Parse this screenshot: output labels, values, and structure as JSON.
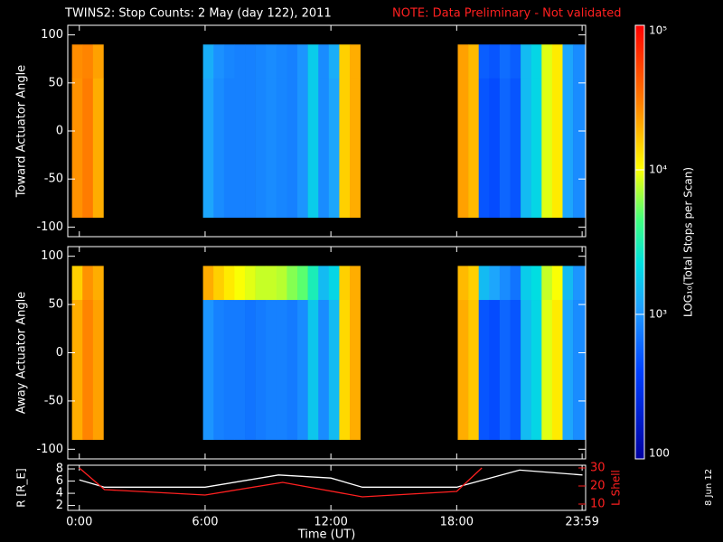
{
  "title": "TWINS2: Stop Counts:  2 May (day 122), 2011",
  "note": "NOTE: Data Preliminary - Not validated",
  "date": "8 Jun 12",
  "colorbar": {
    "label": "LOG₁₀(Total Stops per Scan)",
    "zlim": [
      100,
      100000
    ],
    "ticks": [
      100,
      {
        "value": 1000,
        "label": "10³"
      },
      {
        "value": 10000,
        "label": "10⁴"
      },
      {
        "value": 100000,
        "label": "10⁵"
      }
    ]
  },
  "chart_data": [
    {
      "type": "heatmap",
      "ylabel": "Toward Actuator Angle",
      "xlim": [
        -0.55,
        24.15
      ],
      "ylim": [
        -110,
        110
      ],
      "yticks": [
        100,
        50,
        0,
        -50,
        -100
      ],
      "y_bins": [
        -90,
        55,
        90
      ],
      "blocks": [
        {
          "x_bins": [
            -0.35,
            0.15,
            0.65,
            1.15
          ],
          "z": [
            [
              25000,
              30000,
              20000
            ],
            [
              26000,
              28000,
              22000
            ]
          ]
        },
        {
          "x_bins": [
            5.9,
            6.4,
            6.9,
            7.4,
            7.9,
            8.4,
            8.9,
            9.4,
            9.9,
            10.4,
            10.9,
            11.4,
            11.9,
            12.4,
            12.9,
            13.4
          ],
          "z": [
            [
              1200,
              900,
              800,
              800,
              800,
              850,
              900,
              850,
              800,
              1000,
              1800,
              900,
              1200,
              15000,
              20000
            ],
            [
              1300,
              950,
              850,
              800,
              800,
              850,
              900,
              850,
              800,
              1000,
              1800,
              900,
              1300,
              15000,
              20000
            ]
          ]
        },
        {
          "x_bins": [
            18.05,
            18.55,
            19.05,
            19.55,
            20.05,
            20.55,
            21.05,
            21.55,
            22.05,
            22.55,
            23.05,
            23.55,
            24.15
          ],
          "z": [
            [
              22000,
              18000,
              500,
              450,
              600,
              500,
              1500,
              2000,
              9000,
              12000,
              1200,
              900
            ],
            [
              22000,
              18000,
              550,
              500,
              650,
              550,
              1500,
              2000,
              9000,
              12000,
              1200,
              900
            ]
          ]
        }
      ]
    },
    {
      "type": "heatmap",
      "ylabel": "Away Actuator Angle",
      "xlim": [
        -0.55,
        24.15
      ],
      "ylim": [
        -110,
        110
      ],
      "yticks": [
        100,
        50,
        0,
        -50,
        -100
      ],
      "y_bins": [
        -90,
        55,
        90
      ],
      "blocks": [
        {
          "x_bins": [
            -0.35,
            0.15,
            0.65,
            1.15
          ],
          "z": [
            [
              20000,
              28000,
              22000
            ],
            [
              15000,
              25000,
              20000
            ]
          ]
        },
        {
          "x_bins": [
            5.9,
            6.4,
            6.9,
            7.4,
            7.9,
            8.4,
            8.9,
            9.4,
            9.9,
            10.4,
            10.9,
            11.4,
            11.9,
            12.4,
            12.9,
            13.4
          ],
          "z": [
            [
              1000,
              800,
              750,
              750,
              700,
              750,
              800,
              800,
              750,
              900,
              1700,
              900,
              1500,
              14000,
              20000
            ],
            [
              20000,
              15000,
              12000,
              10000,
              9000,
              8000,
              8000,
              7500,
              6000,
              5000,
              3000,
              1500,
              2000,
              15000,
              20000
            ]
          ]
        },
        {
          "x_bins": [
            18.05,
            18.55,
            19.05,
            19.55,
            20.05,
            20.55,
            21.05,
            21.55,
            22.05,
            22.55,
            23.05,
            23.55,
            24.15
          ],
          "z": [
            [
              20000,
              16000,
              500,
              450,
              600,
              500,
              1500,
              2000,
              9000,
              12000,
              1200,
              900
            ],
            [
              18000,
              15000,
              1500,
              1200,
              900,
              700,
              1800,
              2200,
              8000,
              10000,
              1500,
              1000
            ]
          ]
        }
      ]
    },
    {
      "type": "line",
      "xlabel": "Time (UT)",
      "ylabel": "R [R_E]",
      "y2label": "L Shell",
      "xlim": [
        -0.55,
        24.15
      ],
      "ylim": [
        1.2,
        8.6
      ],
      "y2lim": [
        6.5,
        31.5
      ],
      "xticks": [
        {
          "value": 0,
          "label": "0:00"
        },
        {
          "value": 6,
          "label": "6:00"
        },
        {
          "value": 12,
          "label": "12:00"
        },
        {
          "value": 18,
          "label": "18:00"
        },
        {
          "value": 23.983,
          "label": "23:59"
        }
      ],
      "yticks": [
        2,
        4,
        6,
        8
      ],
      "y2ticks": [
        10,
        20,
        30
      ],
      "series": [
        {
          "name": "R",
          "color": "#ffffff",
          "x": [
            0,
            1.2,
            6,
            9.5,
            12,
            13.5,
            18,
            21,
            24
          ],
          "values": [
            6.2,
            5,
            5,
            7,
            6.5,
            5,
            5,
            7.8,
            7
          ]
        },
        {
          "name": "L Shell",
          "color": "#ff2020",
          "axis": "y2",
          "x": [
            0,
            1.2,
            6,
            9.7,
            13.5,
            18,
            19.2
          ],
          "values": [
            30,
            18,
            15,
            22,
            14,
            17,
            30
          ]
        }
      ]
    }
  ]
}
